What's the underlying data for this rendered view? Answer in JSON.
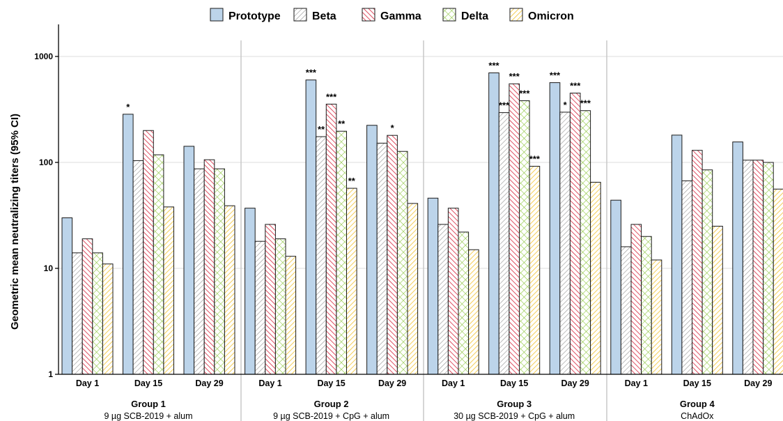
{
  "chart_data": {
    "type": "bar",
    "ylabel": "Geometric mean neutralizing titers (95% CI)",
    "yscale": "log",
    "ylim": [
      1,
      2000
    ],
    "yticks": [
      "1",
      "10",
      "100",
      "1000"
    ],
    "grid": true,
    "legend_position": "top",
    "series": [
      {
        "name": "Prototype",
        "color": "#bcd4ea",
        "pattern": "solid"
      },
      {
        "name": "Beta",
        "color": "#888888",
        "pattern": "diag-light"
      },
      {
        "name": "Gamma",
        "color": "#d7263d",
        "pattern": "diag-red"
      },
      {
        "name": "Delta",
        "color": "#8dc63f",
        "pattern": "cross-green"
      },
      {
        "name": "Omicron",
        "color": "#f2c230",
        "pattern": "diag-yellow"
      }
    ],
    "groups": [
      {
        "name": "Group 1",
        "subtitle": "9 µg SCB-2019 + alum",
        "days": [
          {
            "label": "Day 1",
            "values": [
              30,
              14,
              19,
              14,
              11
            ],
            "sig": [
              "",
              "",
              "",
              "",
              ""
            ]
          },
          {
            "label": "Day 15",
            "values": [
              285,
              104,
              200,
              118,
              38
            ],
            "sig": [
              "*",
              "",
              "",
              "",
              ""
            ]
          },
          {
            "label": "Day 29",
            "values": [
              142,
              87,
              106,
              87,
              39
            ],
            "sig": [
              "",
              "",
              "",
              "",
              ""
            ]
          }
        ]
      },
      {
        "name": "Group 2",
        "subtitle": "9 µg SCB-2019 + CpG + alum",
        "days": [
          {
            "label": "Day 1",
            "values": [
              37,
              18,
              26,
              19,
              13
            ],
            "sig": [
              "",
              "",
              "",
              "",
              ""
            ]
          },
          {
            "label": "Day 15",
            "values": [
              600,
              175,
              355,
              197,
              57
            ],
            "sig": [
              "***",
              "**",
              "***",
              "**",
              "**"
            ]
          },
          {
            "label": "Day 29",
            "values": [
              224,
              152,
              180,
              127,
              41
            ],
            "sig": [
              "",
              "",
              "*",
              "",
              ""
            ]
          }
        ]
      },
      {
        "name": "Group 3",
        "subtitle": "30 µg SCB-2019 + CpG + alum",
        "days": [
          {
            "label": "Day 1",
            "values": [
              46,
              26,
              37,
              22,
              15
            ],
            "sig": [
              "",
              "",
              "",
              "",
              ""
            ]
          },
          {
            "label": "Day 15",
            "values": [
              700,
              295,
              552,
              382,
              92
            ],
            "sig": [
              "***",
              "***",
              "***",
              "***",
              "***"
            ]
          },
          {
            "label": "Day 29",
            "values": [
              566,
              298,
              451,
              308,
              65
            ],
            "sig": [
              "***",
              "*",
              "***",
              "***",
              ""
            ]
          }
        ]
      },
      {
        "name": "Group 4",
        "subtitle": "ChAdOx",
        "days": [
          {
            "label": "Day 1",
            "values": [
              44,
              16,
              26,
              20,
              12
            ],
            "sig": [
              "",
              "",
              "",
              "",
              ""
            ]
          },
          {
            "label": "Day 15",
            "values": [
              181,
              67,
              130,
              85,
              25
            ],
            "sig": [
              "",
              "",
              "",
              "",
              ""
            ]
          },
          {
            "label": "Day 29",
            "values": [
              156,
              105,
              105,
              100,
              56
            ],
            "sig": [
              "",
              "",
              "",
              "",
              ""
            ]
          }
        ]
      }
    ]
  }
}
